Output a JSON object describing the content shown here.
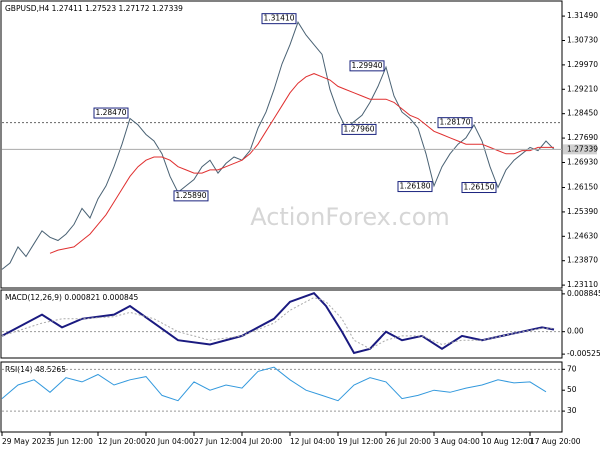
{
  "chart_data": [
    {
      "type": "line",
      "title": "GBPUSD,H4  1.27411 1.27523 1.27172 1.27339",
      "watermark": "ActionForex.com",
      "x": [
        0,
        1,
        2,
        3,
        4,
        5,
        6,
        7,
        8,
        9,
        10,
        11,
        12,
        13,
        14,
        15,
        16,
        17,
        18,
        19,
        20,
        21,
        22,
        23,
        24,
        25,
        26,
        27,
        28,
        29,
        30,
        31,
        32,
        33,
        34,
        35,
        36,
        37,
        38,
        39,
        40,
        41,
        42,
        43,
        44,
        45,
        46,
        47,
        48,
        49,
        50,
        51,
        52,
        53,
        54,
        55,
        56,
        57,
        58,
        59,
        60,
        61,
        62,
        63,
        64,
        65,
        66,
        67,
        68,
        69
      ],
      "xlim": [
        0,
        70
      ],
      "series": [
        {
          "name": "Price",
          "color": "#4a6274",
          "values": [
            1.236,
            1.238,
            1.243,
            1.24,
            1.244,
            1.248,
            1.246,
            1.245,
            1.247,
            1.25,
            1.255,
            1.252,
            1.258,
            1.262,
            1.268,
            1.275,
            1.283,
            1.281,
            1.278,
            1.276,
            1.272,
            1.265,
            1.26,
            1.262,
            1.264,
            1.268,
            1.27,
            1.266,
            1.269,
            1.271,
            1.27,
            1.273,
            1.28,
            1.285,
            1.292,
            1.3,
            1.306,
            1.313,
            1.309,
            1.306,
            1.303,
            1.292,
            1.285,
            1.28,
            1.282,
            1.284,
            1.288,
            1.293,
            1.299,
            1.29,
            1.285,
            1.283,
            1.28,
            1.272,
            1.262,
            1.268,
            1.272,
            1.275,
            1.277,
            1.281,
            1.276,
            1.268,
            1.2615,
            1.267,
            1.27,
            1.272,
            1.274,
            1.273,
            1.276,
            1.27339
          ]
        },
        {
          "name": "MA",
          "color": "#e03030",
          "values": [
            null,
            null,
            null,
            null,
            null,
            null,
            1.241,
            1.242,
            1.2425,
            1.243,
            1.245,
            1.247,
            1.25,
            1.253,
            1.257,
            1.261,
            1.265,
            1.268,
            1.27,
            1.271,
            1.271,
            1.27,
            1.268,
            1.267,
            1.266,
            1.266,
            1.267,
            1.267,
            1.268,
            1.269,
            1.27,
            1.272,
            1.275,
            1.279,
            1.283,
            1.287,
            1.291,
            1.294,
            1.296,
            1.297,
            1.296,
            1.295,
            1.293,
            1.292,
            1.291,
            1.29,
            1.289,
            1.289,
            1.289,
            1.288,
            1.286,
            1.284,
            1.283,
            1.281,
            1.279,
            1.278,
            1.277,
            1.276,
            1.275,
            1.275,
            1.275,
            1.274,
            1.273,
            1.272,
            1.272,
            1.273,
            1.273,
            1.274,
            1.274,
            1.274
          ]
        }
      ],
      "ylim": [
        1.2302,
        1.3196
      ],
      "yticks": [
        {
          "value": 1.3149,
          "label": "1.31490"
        },
        {
          "value": 1.3073,
          "label": "1.30730"
        },
        {
          "value": 1.2997,
          "label": "1.29970"
        },
        {
          "value": 1.2921,
          "label": "1.29210"
        },
        {
          "value": 1.2845,
          "label": "1.28450"
        },
        {
          "value": 1.2769,
          "label": "1.27690"
        },
        {
          "value": 1.2693,
          "label": "1.26930"
        },
        {
          "value": 1.2615,
          "label": "1.26150"
        },
        {
          "value": 1.2539,
          "label": "1.25390"
        },
        {
          "value": 1.2463,
          "label": "1.24630"
        },
        {
          "value": 1.2387,
          "label": "1.23870"
        },
        {
          "value": 1.2311,
          "label": "1.23110"
        }
      ],
      "level": 1.2817,
      "last": 1.27339,
      "annotations": [
        {
          "text": "1.28470",
          "value": 1.2847,
          "x": 16
        },
        {
          "text": "1.25890",
          "value": 1.2589,
          "x": 26
        },
        {
          "text": "1.31410",
          "value": 1.3141,
          "x": 37
        },
        {
          "text": "1.27960",
          "value": 1.2796,
          "x": 47
        },
        {
          "text": "1.29940",
          "value": 1.2994,
          "x": 48
        },
        {
          "text": "1.26180",
          "value": 1.2618,
          "x": 54
        },
        {
          "text": "1.28170",
          "value": 1.2817,
          "x": 59
        },
        {
          "text": "1.26150",
          "value": 1.2615,
          "x": 62
        }
      ]
    },
    {
      "type": "line",
      "title": "MACD(12,26,9) 0.000821 0.000845",
      "x": [
        0,
        5,
        7.5,
        10,
        14,
        16,
        19,
        22,
        26,
        30,
        34,
        36,
        39,
        40.5,
        42.5,
        44,
        46,
        48,
        50,
        52.5,
        55,
        57.5,
        60,
        62.5,
        65,
        67.5,
        69
      ],
      "xlim": [
        0,
        70
      ],
      "series": [
        {
          "name": "MACD",
          "color": "#1a1a80",
          "width": 2,
          "values": [
            -0.001,
            0.004,
            0.001,
            0.003,
            0.004,
            0.006,
            0.002,
            -0.002,
            -0.003,
            -0.001,
            0.003,
            0.007,
            0.009,
            0.006,
            0.0,
            -0.005,
            -0.004,
            0.0,
            -0.002,
            -0.001,
            -0.004,
            -0.001,
            -0.002,
            -0.001,
            0.0,
            0.001,
            0.0005
          ]
        },
        {
          "name": "Signal",
          "color": "#aaaaaa",
          "dotted": true,
          "values": [
            -0.001,
            0.002,
            0.003,
            0.003,
            0.0035,
            0.0045,
            0.003,
            0.0,
            -0.002,
            -0.001,
            0.002,
            0.005,
            0.008,
            0.007,
            0.003,
            -0.002,
            -0.004,
            -0.002,
            -0.001,
            -0.001,
            -0.003,
            -0.002,
            -0.002,
            -0.001,
            0.0,
            0.0008,
            0.0008
          ]
        }
      ],
      "ylim": [
        -0.00616,
        0.00975
      ],
      "yticks": [
        0.008845,
        {
          "value": 0,
          "label": "0.00"
        },
        -0.005252
      ],
      "levels": [
        0
      ]
    },
    {
      "type": "line",
      "title": "RSI(14) 48.5265",
      "x": [
        0,
        2,
        4,
        6,
        8,
        10,
        12,
        14,
        16,
        18,
        20,
        22,
        24,
        26,
        28,
        30,
        32,
        34,
        36,
        38,
        40,
        42,
        44,
        46,
        48,
        50,
        52,
        54,
        56,
        58,
        60,
        62,
        64,
        66,
        68
      ],
      "xlim": [
        0,
        70
      ],
      "series": [
        {
          "name": "RSI",
          "color": "#3399dd",
          "values": [
            42,
            55,
            60,
            48,
            62,
            58,
            65,
            55,
            60,
            63,
            45,
            40,
            58,
            50,
            55,
            52,
            68,
            72,
            60,
            50,
            45,
            40,
            55,
            62,
            58,
            42,
            45,
            50,
            48,
            52,
            55,
            60,
            57,
            58,
            48.5
          ]
        }
      ],
      "ylim": [
        10,
        77
      ],
      "yticks": [
        70,
        50,
        30
      ],
      "levels": [
        70,
        30
      ],
      "xticks": [
        {
          "value": 0,
          "label": "29 May 2023"
        },
        {
          "value": 6,
          "label": "5 Jun 12:00"
        },
        {
          "value": 12,
          "label": "12 Jun 20:00"
        },
        {
          "value": 18,
          "label": "20 Jun 04:00"
        },
        {
          "value": 24,
          "label": "27 Jun 12:00"
        },
        {
          "value": 30,
          "label": "4 Jul 20:00"
        },
        {
          "value": 36,
          "label": "12 Jul 04:00"
        },
        {
          "value": 42,
          "label": "19 Jul 12:00"
        },
        {
          "value": 48,
          "label": "26 Jul 20:00"
        },
        {
          "value": 54,
          "label": "3 Aug 04:00"
        },
        {
          "value": 60,
          "label": "10 Aug 12:00"
        },
        {
          "value": 66,
          "label": "17 Aug 20:00"
        }
      ]
    }
  ]
}
